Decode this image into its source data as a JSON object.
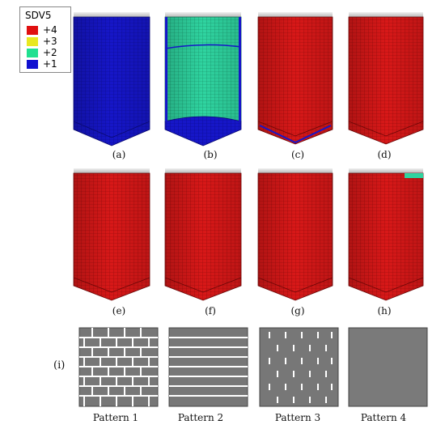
{
  "legend": {
    "title": "SDV5",
    "items": [
      {
        "label": "+4",
        "color": "#e01010"
      },
      {
        "label": "+3",
        "color": "#e8e820"
      },
      {
        "label": "+2",
        "color": "#20e090"
      },
      {
        "label": "+1",
        "color": "#1010d0"
      }
    ]
  },
  "panels": [
    {
      "caption": "(a)",
      "fill": "blue"
    },
    {
      "caption": "(b)",
      "fill": "green-blue"
    },
    {
      "caption": "(c)",
      "fill": "red"
    },
    {
      "caption": "(d)",
      "fill": "red"
    },
    {
      "caption": "(e)",
      "fill": "red"
    },
    {
      "caption": "(f)",
      "fill": "red"
    },
    {
      "caption": "(g)",
      "fill": "red"
    },
    {
      "caption": "(h)",
      "fill": "red"
    }
  ],
  "patterns_row_label": "(i)",
  "patterns": [
    {
      "caption": "Pattern 1",
      "kind": "brick"
    },
    {
      "caption": "Pattern 2",
      "kind": "stripes"
    },
    {
      "caption": "Pattern 3",
      "kind": "dashes"
    },
    {
      "caption": "Pattern 4",
      "kind": "plain"
    }
  ],
  "colors": {
    "red": "#d81818",
    "red_dark": "#a30d0d",
    "blue": "#1616c8",
    "blue_dark": "#0c0c8c",
    "green": "#2fd4a0",
    "pattern_gray": "#777777",
    "lid": "#d8d8d8"
  }
}
